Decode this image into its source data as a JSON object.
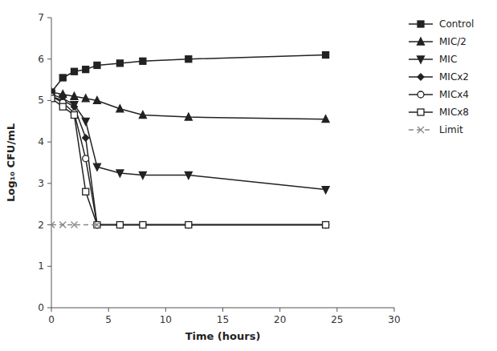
{
  "chart_data": {
    "type": "line",
    "x_label": "Time (hours)",
    "y_label": "Log₁₀ CFU/mL",
    "xlim": [
      0,
      30
    ],
    "ylim": [
      0,
      7
    ],
    "xticks": [
      0,
      5,
      10,
      15,
      20,
      25,
      30
    ],
    "yticks": [
      0,
      1,
      2,
      3,
      4,
      5,
      6,
      7
    ],
    "grid": false,
    "legend": "right",
    "series": [
      {
        "name": "Control",
        "color": "#222222",
        "marker": "square",
        "line_style": "solid",
        "x": [
          0,
          1,
          2,
          3,
          4,
          6,
          8,
          12,
          24
        ],
        "values": [
          5.2,
          5.55,
          5.7,
          5.75,
          5.85,
          5.9,
          5.95,
          6.0,
          6.1
        ]
      },
      {
        "name": "MIC/2",
        "color": "#222222",
        "marker": "triangle-up",
        "line_style": "solid",
        "x": [
          0,
          1,
          2,
          3,
          4,
          6,
          8,
          12,
          24
        ],
        "values": [
          5.2,
          5.15,
          5.1,
          5.05,
          5.0,
          4.8,
          4.65,
          4.6,
          4.55
        ]
      },
      {
        "name": "MIC",
        "color": "#222222",
        "marker": "triangle-down",
        "line_style": "solid",
        "x": [
          0,
          1,
          2,
          3,
          4,
          6,
          8,
          12,
          24
        ],
        "values": [
          5.15,
          5.05,
          4.9,
          4.5,
          3.4,
          3.25,
          3.2,
          3.2,
          2.85
        ]
      },
      {
        "name": "MICx2",
        "color": "#222222",
        "marker": "diamond",
        "line_style": "solid",
        "x": [
          0,
          1,
          2,
          3,
          4,
          6,
          8,
          12,
          24
        ],
        "values": [
          5.1,
          5.0,
          4.85,
          4.1,
          2.0,
          2.0,
          2.0,
          2.0,
          2.0
        ]
      },
      {
        "name": "MICx4",
        "color": "#222222",
        "marker": "circle-open",
        "line_style": "solid",
        "x": [
          0,
          1,
          2,
          3,
          4,
          6,
          8,
          12,
          24
        ],
        "values": [
          5.1,
          4.95,
          4.7,
          3.6,
          2.0,
          2.0,
          2.0,
          2.0,
          2.0
        ]
      },
      {
        "name": "MICx8",
        "color": "#222222",
        "marker": "square-open",
        "line_style": "solid",
        "x": [
          0,
          1,
          2,
          3,
          4,
          6,
          8,
          12,
          24
        ],
        "values": [
          5.05,
          4.85,
          4.65,
          2.8,
          2.0,
          2.0,
          2.0,
          2.0,
          2.0
        ]
      },
      {
        "name": "Limit",
        "color": "#888888",
        "marker": "x",
        "line_style": "dashed",
        "x": [
          0,
          1,
          2,
          4
        ],
        "values": [
          2.0,
          2.0,
          2.0,
          2.0
        ]
      }
    ]
  }
}
